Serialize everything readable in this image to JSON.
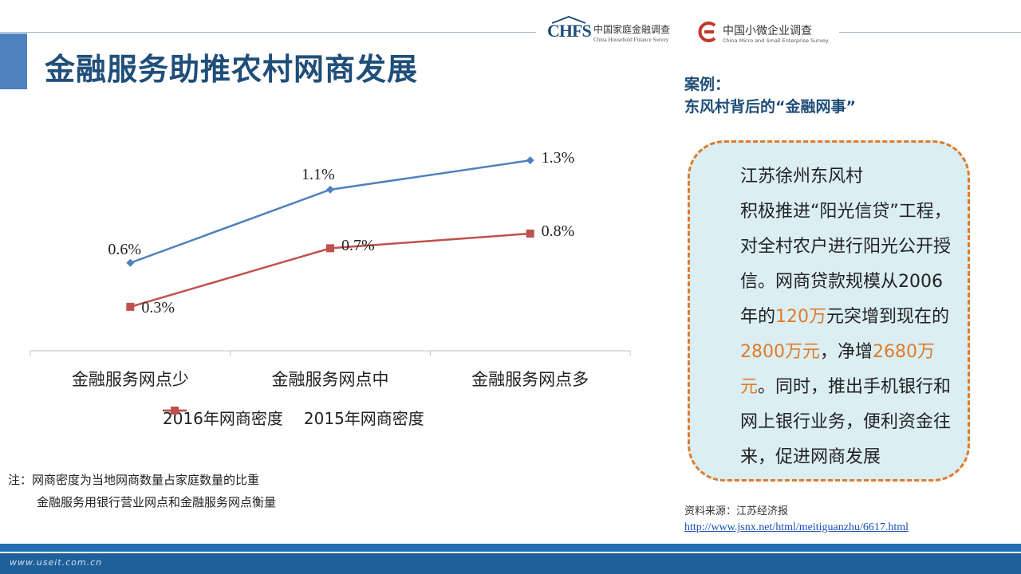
{
  "title": "金融服务助推农村网商发展",
  "logos": {
    "chfs_mark": "CHFS",
    "chfs_cn": "中国家庭金融调查",
    "chfs_en": "China Household Finance Survey",
    "cmes_cn": "中国小微企业调查",
    "cmes_en": "China Micro and Small Enterprise Survey"
  },
  "chart_data": {
    "type": "line",
    "categories": [
      "金融服务网点少",
      "金融服务网点中",
      "金融服务网点多"
    ],
    "series": [
      {
        "name": "2016年网商密度",
        "values": [
          0.6,
          1.1,
          1.3
        ],
        "labels": [
          "0.6%",
          "1.1%",
          "1.3%"
        ],
        "color": "#4f81bd",
        "marker": "diamond"
      },
      {
        "name": "2015年网商密度",
        "values": [
          0.3,
          0.7,
          0.8
        ],
        "labels": [
          "0.3%",
          "0.7%",
          "0.8%"
        ],
        "color": "#c0504d",
        "marker": "square"
      }
    ],
    "ylim": [
      0,
      1.6
    ],
    "unit": "%",
    "grid": false,
    "legend_position": "bottom"
  },
  "note": {
    "line1": "注：网商密度为当地网商数量占家庭数量的比重",
    "line2": "金融服务用银行营业网点和金融服务网点衡量"
  },
  "case": {
    "heading_line1": "案例：",
    "heading_line2": "东风村背后的“金融网事”",
    "para1": "江苏徐州东风村",
    "para2_a": "积极推进“阳光信贷”工程，对全村农户进行阳光公开授信。网商贷款规模从2006年的",
    "hl1": "120万",
    "para2_b": "元突增到现在的",
    "hl2": "2800万元",
    "para2_c": "，净增",
    "hl3": "2680万元",
    "para2_d": "。同时，推出手机银行和网上银行业务，便利资金往来，促进网商发展"
  },
  "source": {
    "label": "资料来源：江苏经济报",
    "url": "http://www.jsnx.net/html/meitiguanzhu/6617.html"
  },
  "footer": {
    "site": "www.useit.com.cn"
  }
}
